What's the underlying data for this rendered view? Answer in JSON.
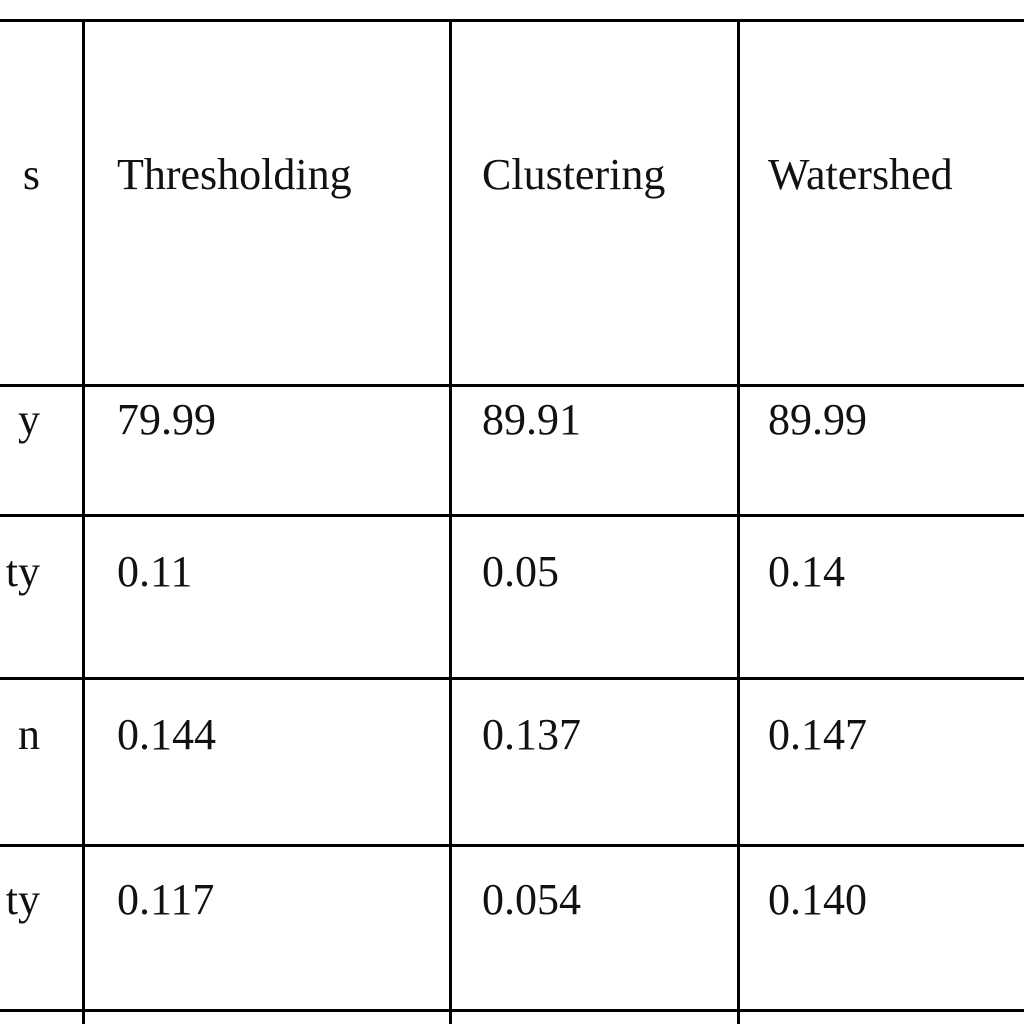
{
  "table": {
    "header": [
      "s",
      "Thresholding",
      "Clustering",
      "Watershed"
    ],
    "rows": [
      [
        "y",
        "79.99",
        "89.91",
        "89.99"
      ],
      [
        "ty",
        "0.11",
        "0.05",
        "0.14"
      ],
      [
        "n",
        "0.144",
        "0.137",
        "0.147"
      ],
      [
        "ty",
        "0.117",
        "0.054",
        "0.140"
      ]
    ]
  }
}
